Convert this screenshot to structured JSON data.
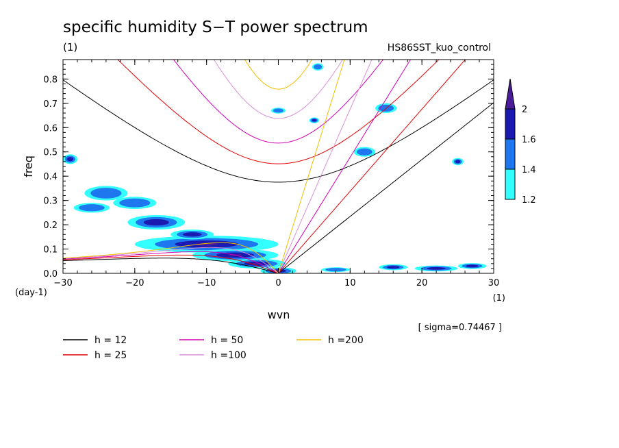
{
  "chart_data": {
    "type": "contour",
    "title": "specific humidity S−T power spectrum",
    "title_units": "(1)",
    "run_label": "HS86SST_kuo_control",
    "xlabel": "wvn",
    "ylabel": "freq",
    "x_units": "(1)",
    "y_units": "(day-1)",
    "xlim": [
      -30,
      30
    ],
    "ylim": [
      0,
      0.88
    ],
    "x_ticks": [
      -30,
      -20,
      -10,
      0,
      10,
      20,
      30
    ],
    "y_ticks": [
      0.0,
      0.1,
      0.2,
      0.3,
      0.4,
      0.5,
      0.6,
      0.7,
      0.8
    ],
    "sigma_note": "[ sigma=0.74467 ]",
    "colorbar": {
      "levels": [
        "1.2",
        "1.4",
        "1.6",
        "2"
      ],
      "colors": [
        "#33ffff",
        "#1f77f0",
        "#1a1ab0",
        "#4b1c9a"
      ]
    },
    "dispersion_curves": [
      {
        "label": "h = 12",
        "h": 12,
        "color": "#000000"
      },
      {
        "label": "h = 25",
        "h": 25,
        "color": "#e00000"
      },
      {
        "label": "h = 50",
        "h": 50,
        "color": "#d000b0"
      },
      {
        "label": "h =100",
        "h": 100,
        "color": "#d890d8"
      },
      {
        "label": "h =200",
        "h": 200,
        "color": "#f0c000"
      }
    ],
    "contour_blobs": [
      {
        "x": -10,
        "y": 0.12,
        "sx": 10,
        "sy": 0.035,
        "level": 3
      },
      {
        "x": -6,
        "y": 0.075,
        "sx": 6,
        "sy": 0.025,
        "level": 3
      },
      {
        "x": -3,
        "y": 0.04,
        "sx": 4,
        "sy": 0.02,
        "level": 3
      },
      {
        "x": -17,
        "y": 0.21,
        "sx": 4,
        "sy": 0.03,
        "level": 2
      },
      {
        "x": -12,
        "y": 0.16,
        "sx": 3,
        "sy": 0.02,
        "level": 2
      },
      {
        "x": -24,
        "y": 0.33,
        "sx": 3,
        "sy": 0.03,
        "level": 1
      },
      {
        "x": -26,
        "y": 0.27,
        "sx": 2.5,
        "sy": 0.02,
        "level": 1
      },
      {
        "x": -20,
        "y": 0.29,
        "sx": 3,
        "sy": 0.025,
        "level": 1
      },
      {
        "x": -29,
        "y": 0.47,
        "sx": 1,
        "sy": 0.02,
        "level": 2
      },
      {
        "x": 0,
        "y": 0.01,
        "sx": 2.5,
        "sy": 0.015,
        "level": 3
      },
      {
        "x": 16,
        "y": 0.025,
        "sx": 2,
        "sy": 0.012,
        "level": 2
      },
      {
        "x": 22,
        "y": 0.02,
        "sx": 3,
        "sy": 0.012,
        "level": 2
      },
      {
        "x": 27,
        "y": 0.03,
        "sx": 2,
        "sy": 0.012,
        "level": 2
      },
      {
        "x": 8,
        "y": 0.015,
        "sx": 2,
        "sy": 0.01,
        "level": 1
      },
      {
        "x": 5,
        "y": 0.63,
        "sx": 0.7,
        "sy": 0.012,
        "level": 2
      },
      {
        "x": 15,
        "y": 0.68,
        "sx": 1.5,
        "sy": 0.02,
        "level": 1
      },
      {
        "x": 12,
        "y": 0.5,
        "sx": 1.5,
        "sy": 0.02,
        "level": 1
      },
      {
        "x": 0,
        "y": 0.67,
        "sx": 1,
        "sy": 0.012,
        "level": 1
      },
      {
        "x": 5.5,
        "y": 0.85,
        "sx": 0.8,
        "sy": 0.015,
        "level": 1
      },
      {
        "x": 25,
        "y": 0.46,
        "sx": 0.8,
        "sy": 0.015,
        "level": 2
      }
    ]
  }
}
